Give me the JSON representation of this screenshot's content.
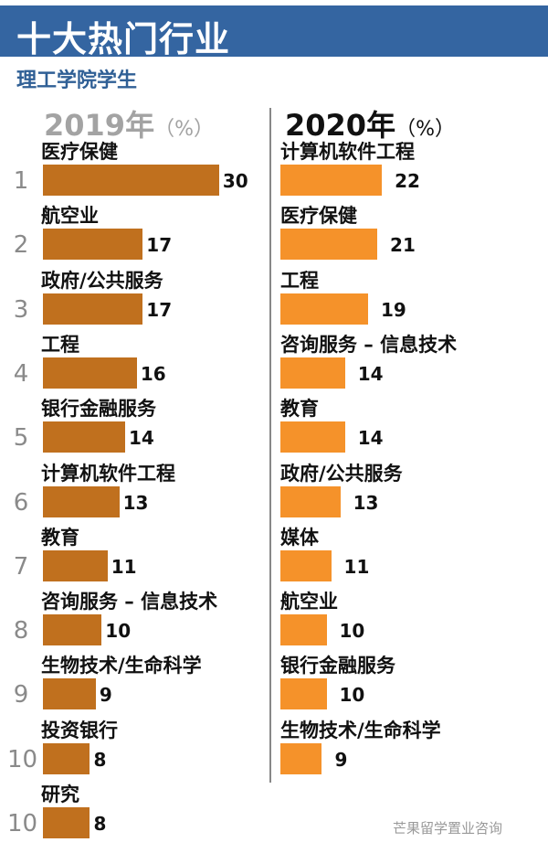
{
  "header": {
    "title": "十大热门行业",
    "subtitle": "理工学院学生",
    "watermark": "芒果留学置业咨询"
  },
  "colors": {
    "header": "#3465a1",
    "bar_2019": "#c0701e",
    "bar_2020": "#f5922a"
  },
  "chart_data": [
    {
      "type": "bar",
      "orientation": "horizontal",
      "title": "2019年",
      "unit": "（%）",
      "ranks": [
        "1",
        "2",
        "3",
        "4",
        "5",
        "6",
        "7",
        "8",
        "9",
        "10",
        "10"
      ],
      "categories": [
        "医疗保健",
        "航空业",
        "政府/公共服务",
        "工程",
        "银行金融服务",
        "计算机软件工程",
        "教育",
        "咨询服务 – 信息技术",
        "生物技术/生命科学",
        "投资银行",
        "研究"
      ],
      "values": [
        30,
        17,
        17,
        16,
        14,
        13,
        11,
        10,
        9,
        8,
        8
      ]
    },
    {
      "type": "bar",
      "orientation": "horizontal",
      "title": "2020年",
      "unit": "（%）",
      "categories": [
        "计算机软件工程",
        "医疗保健",
        "工程",
        "咨询服务 – 信息技术",
        "教育",
        "政府/公共服务",
        "媒体",
        "航空业",
        "银行金融服务",
        "生物技术/生命科学"
      ],
      "values": [
        22,
        21,
        19,
        14,
        14,
        13,
        11,
        10,
        10,
        9
      ]
    }
  ]
}
